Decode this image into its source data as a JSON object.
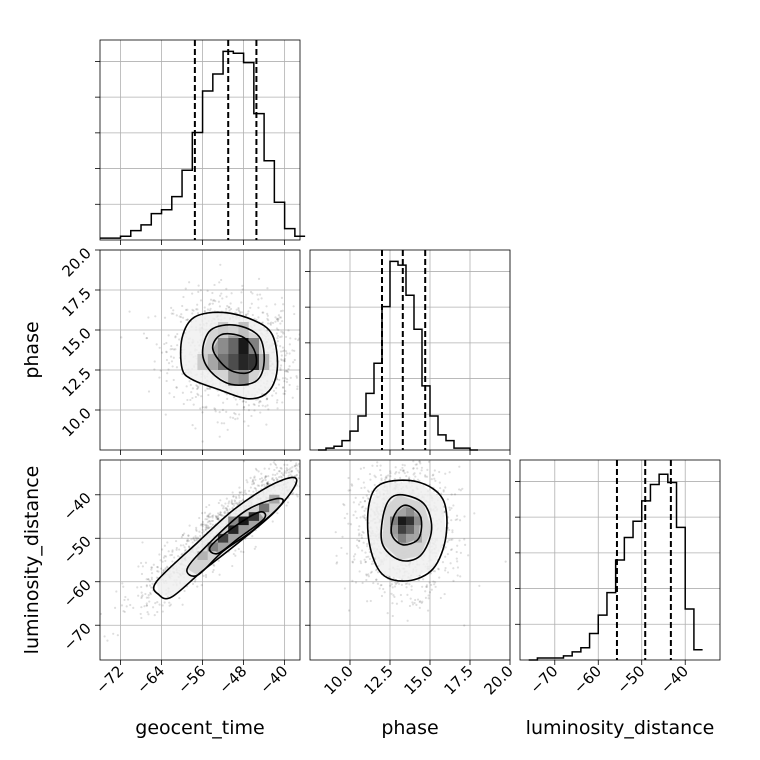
{
  "chart_data": {
    "type": "corner",
    "parameters": [
      {
        "key": "geocent_time",
        "label": "geocent_time",
        "range": [
          -76,
          -37
        ],
        "ticks": [
          -72,
          -64,
          -56,
          -48,
          -40
        ]
      },
      {
        "key": "phase",
        "label": "phase",
        "range": [
          7.5,
          20
        ],
        "ticks": [
          10.0,
          12.5,
          15.0,
          17.5,
          20.0
        ]
      },
      {
        "key": "luminosity_distance",
        "label": "luminosity_distance",
        "range": [
          -78,
          -32
        ],
        "ticks": [
          -70,
          -60,
          -50,
          -40
        ]
      }
    ],
    "tick_labels": {
      "geocent_time": [
        "−72",
        "−64",
        "−56",
        "−48",
        "−40"
      ],
      "phase": [
        "10.0",
        "12.5",
        "15.0",
        "17.5",
        "20.0"
      ],
      "luminosity_distance": [
        "−70",
        "−60",
        "−50",
        "−40"
      ]
    },
    "histograms": {
      "geocent_time": {
        "edges": [
          -76,
          -74,
          -72,
          -70,
          -68,
          -66,
          -64,
          -62,
          -60,
          -58,
          -56,
          -54,
          -52,
          -50,
          -48,
          -46,
          -44,
          -42,
          -40,
          -38,
          -36
        ],
        "counts": [
          1,
          1,
          2,
          5,
          8,
          14,
          16,
          23,
          37,
          57,
          79,
          88,
          100,
          99,
          94,
          67,
          42,
          20,
          6,
          2
        ],
        "ymax": 106,
        "quantiles": [
          -57.5,
          -51.0,
          -45.5
        ]
      },
      "phase": {
        "edges": [
          8.0,
          8.5,
          9.0,
          9.5,
          10.0,
          10.5,
          11.0,
          11.5,
          12.0,
          12.5,
          13.0,
          13.5,
          14.0,
          14.5,
          15.0,
          15.5,
          16.0,
          16.5,
          17.0,
          17.5,
          18.0
        ],
        "counts": [
          0,
          1,
          2,
          5,
          10,
          18,
          30,
          46,
          76,
          100,
          98,
          82,
          64,
          34,
          18,
          8,
          5,
          1,
          1,
          0
        ],
        "ymax": 106,
        "quantiles": [
          12.0,
          13.3,
          14.7
        ]
      },
      "luminosity_distance": {
        "edges": [
          -76,
          -74,
          -72,
          -70,
          -68,
          -66,
          -64,
          -62,
          -60,
          -58,
          -56,
          -54,
          -52,
          -50,
          -48,
          -46,
          -44,
          -42,
          -40,
          -38,
          -36
        ],
        "counts": [
          0,
          1,
          1,
          1,
          2,
          4,
          6,
          13,
          22,
          33,
          49,
          60,
          68,
          78,
          86,
          91,
          87,
          65,
          25,
          5
        ],
        "ymax": 98,
        "quantiles": [
          -55.7,
          -49.2,
          -43.3
        ]
      }
    },
    "contour_levels_1d_note": "",
    "pairs": [
      {
        "x": "geocent_time",
        "y": "phase",
        "center": [
          -50,
          13.5
        ],
        "contours": [
          [
            [
              -60.0,
              12.6
            ],
            [
              -60.0,
              14.5
            ],
            [
              -57.6,
              15.8
            ],
            [
              -52.0,
              16.1
            ],
            [
              -46.0,
              15.6
            ],
            [
              -42.4,
              14.7
            ],
            [
              -41.4,
              12.7
            ],
            [
              -43.0,
              11.2
            ],
            [
              -47.0,
              10.7
            ],
            [
              -53.0,
              11.3
            ],
            [
              -58.0,
              11.9
            ]
          ],
          [
            [
              -56.0,
              13.6
            ],
            [
              -54.4,
              15.0
            ],
            [
              -49.6,
              15.3
            ],
            [
              -45.0,
              14.6
            ],
            [
              -44.0,
              13.0
            ],
            [
              -45.6,
              11.8
            ],
            [
              -50.4,
              11.6
            ],
            [
              -54.4,
              12.4
            ]
          ],
          [
            [
              -54.0,
              13.8
            ],
            [
              -52.4,
              14.7
            ],
            [
              -48.4,
              14.6
            ],
            [
              -46.0,
              13.8
            ],
            [
              -45.6,
              12.8
            ],
            [
              -47.6,
              12.3
            ],
            [
              -51.2,
              12.6
            ]
          ]
        ],
        "density_cells": [
          [
            -52,
            13,
            0.55
          ],
          [
            -50,
            13,
            0.7
          ],
          [
            -48,
            13,
            0.85
          ],
          [
            -46,
            13,
            0.8
          ],
          [
            -50,
            14,
            0.6
          ],
          [
            -48,
            14,
            0.9
          ],
          [
            -52,
            14,
            0.45
          ],
          [
            -54,
            13,
            0.35
          ],
          [
            -46,
            14,
            0.5
          ],
          [
            -48,
            12,
            0.45
          ],
          [
            -50,
            12,
            0.4
          ],
          [
            -56,
            13,
            0.2
          ],
          [
            -44,
            13,
            0.3
          ],
          [
            -52,
            15,
            0.2
          ],
          [
            -48,
            15,
            0.25
          ]
        ]
      },
      {
        "x": "geocent_time",
        "y": "luminosity_distance",
        "center": [
          -51,
          -47
        ],
        "contours": [
          [
            [
              -64.5,
              -63.0
            ],
            [
              -65.0,
              -60.0
            ],
            [
              -57.0,
              -51.0
            ],
            [
              -50.0,
              -43.5
            ],
            [
              -43.0,
              -38.0
            ],
            [
              -38.4,
              -36.0
            ],
            [
              -38.0,
              -38.0
            ],
            [
              -42.0,
              -44.0
            ],
            [
              -49.0,
              -51.0
            ],
            [
              -56.0,
              -57.5
            ],
            [
              -62.0,
              -63.5
            ]
          ],
          [
            [
              -59.0,
              -57.0
            ],
            [
              -55.0,
              -51.5
            ],
            [
              -48.0,
              -44.0
            ],
            [
              -42.0,
              -41.0
            ],
            [
              -40.5,
              -42.0
            ],
            [
              -46.0,
              -48.0
            ],
            [
              -52.0,
              -53.0
            ],
            [
              -57.0,
              -58.5
            ]
          ],
          [
            [
              -54.5,
              -52.0
            ],
            [
              -50.0,
              -47.5
            ],
            [
              -45.0,
              -44.0
            ],
            [
              -44.0,
              -45.5
            ],
            [
              -49.0,
              -50.0
            ],
            [
              -53.0,
              -53.5
            ]
          ]
        ],
        "density_cells": [
          [
            -48,
            -46,
            0.9
          ],
          [
            -50,
            -48,
            0.85
          ],
          [
            -52,
            -50,
            0.75
          ],
          [
            -46,
            -45,
            0.8
          ],
          [
            -54,
            -52,
            0.5
          ],
          [
            -44,
            -43,
            0.55
          ],
          [
            -50,
            -46,
            0.45
          ],
          [
            -48,
            -48,
            0.4
          ],
          [
            -56,
            -54,
            0.3
          ],
          [
            -42,
            -41,
            0.35
          ]
        ]
      },
      {
        "x": "phase",
        "y": "luminosity_distance",
        "center": [
          13.3,
          -48
        ],
        "contours": [
          [
            [
              11.2,
              -42.0
            ],
            [
              12.0,
              -37.4
            ],
            [
              14.2,
              -37.0
            ],
            [
              15.8,
              -41.0
            ],
            [
              16.0,
              -49.5
            ],
            [
              15.2,
              -57.0
            ],
            [
              13.6,
              -59.8
            ],
            [
              12.0,
              -58.2
            ],
            [
              11.2,
              -51.0
            ]
          ],
          [
            [
              12.2,
              -43.0
            ],
            [
              13.0,
              -40.0
            ],
            [
              14.6,
              -42.0
            ],
            [
              15.1,
              -48.0
            ],
            [
              14.4,
              -54.0
            ],
            [
              13.1,
              -55.0
            ],
            [
              12.0,
              -51.0
            ]
          ],
          [
            [
              12.8,
              -44.5
            ],
            [
              13.5,
              -42.4
            ],
            [
              14.4,
              -45.0
            ],
            [
              14.3,
              -50.0
            ],
            [
              13.3,
              -51.5
            ],
            [
              12.6,
              -49.0
            ]
          ]
        ],
        "density_cells": [
          [
            13.25,
            -46,
            0.9
          ],
          [
            13.75,
            -46,
            0.8
          ],
          [
            13.25,
            -48,
            0.75
          ],
          [
            13.75,
            -48,
            0.6
          ],
          [
            12.75,
            -46,
            0.5
          ],
          [
            14.25,
            -46,
            0.45
          ],
          [
            13.25,
            -50,
            0.5
          ],
          [
            13.75,
            -44,
            0.45
          ],
          [
            12.75,
            -48,
            0.4
          ],
          [
            14.25,
            -50,
            0.35
          ]
        ]
      }
    ]
  }
}
